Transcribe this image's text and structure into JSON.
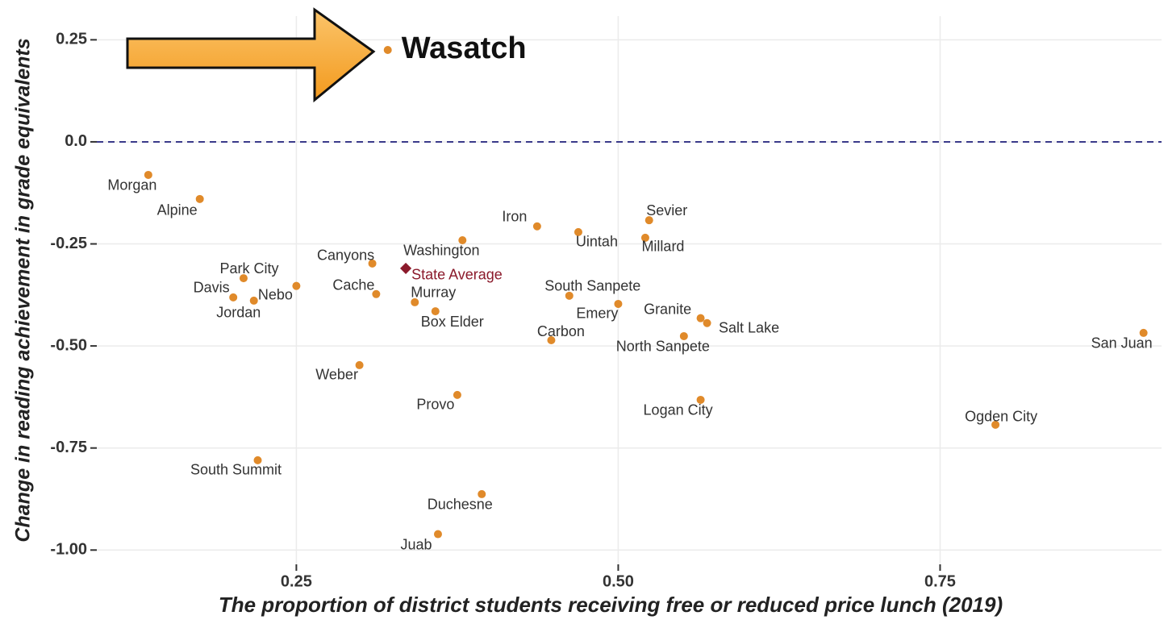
{
  "chart_data": {
    "type": "scatter",
    "x_label": "The proportion of district students receiving free or reduced price lunch (2019)",
    "y_label": "Change in reading achievement in grade equivalents",
    "xlim": [
      0.095,
      0.922
    ],
    "ylim": [
      -1.035,
      0.308
    ],
    "xticks": [
      0.25,
      {
        "value": 0.5,
        "label": "0.50"
      },
      0.75
    ],
    "yticks": [
      0.25,
      {
        "value": 0,
        "label": "0.0"
      },
      -0.25,
      {
        "value": -0.5,
        "label": "-0.50"
      },
      -0.75,
      {
        "value": -1,
        "label": "-1.00"
      }
    ],
    "grid": true,
    "hline": 0,
    "color": "#e08a2a",
    "labels": [
      "Morgan",
      "Alpine",
      "Park City",
      "Davis",
      "Jordan",
      "Nebo",
      "Canyons",
      "Cache",
      "Washington",
      "Murray",
      "Box Elder",
      "Iron",
      "Uintah",
      "Sevier",
      "Millard",
      "South Sanpete",
      "Emery",
      "Carbon",
      "Granite",
      "Salt Lake",
      "North Sanpete",
      "San Juan",
      "Weber",
      "Provo",
      "Logan City",
      "Ogden City",
      "South Summit",
      "Duchesne",
      "Juab"
    ],
    "x": [
      0.135,
      0.175,
      0.209,
      0.201,
      0.217,
      0.25,
      0.309,
      0.312,
      0.379,
      0.342,
      0.358,
      0.437,
      0.469,
      0.524,
      0.521,
      0.462,
      0.5,
      0.448,
      0.564,
      0.569,
      0.551,
      0.908,
      0.299,
      0.375,
      0.564,
      0.793,
      0.22,
      0.394,
      0.36
    ],
    "values": [
      -0.081,
      -0.14,
      -0.334,
      -0.381,
      -0.389,
      -0.353,
      -0.298,
      -0.373,
      -0.241,
      -0.393,
      -0.415,
      -0.207,
      -0.221,
      -0.192,
      -0.235,
      -0.377,
      -0.397,
      -0.486,
      -0.432,
      -0.444,
      -0.476,
      -0.468,
      -0.547,
      -0.62,
      -0.632,
      -0.693,
      -0.78,
      -0.863,
      -0.961
    ],
    "state_average": {
      "label": "State Average",
      "x": 0.335,
      "y": -0.31,
      "color": "#8b1a2b"
    },
    "annotation": {
      "label": "Wasatch",
      "x": 0.321,
      "y": 0.225
    }
  }
}
